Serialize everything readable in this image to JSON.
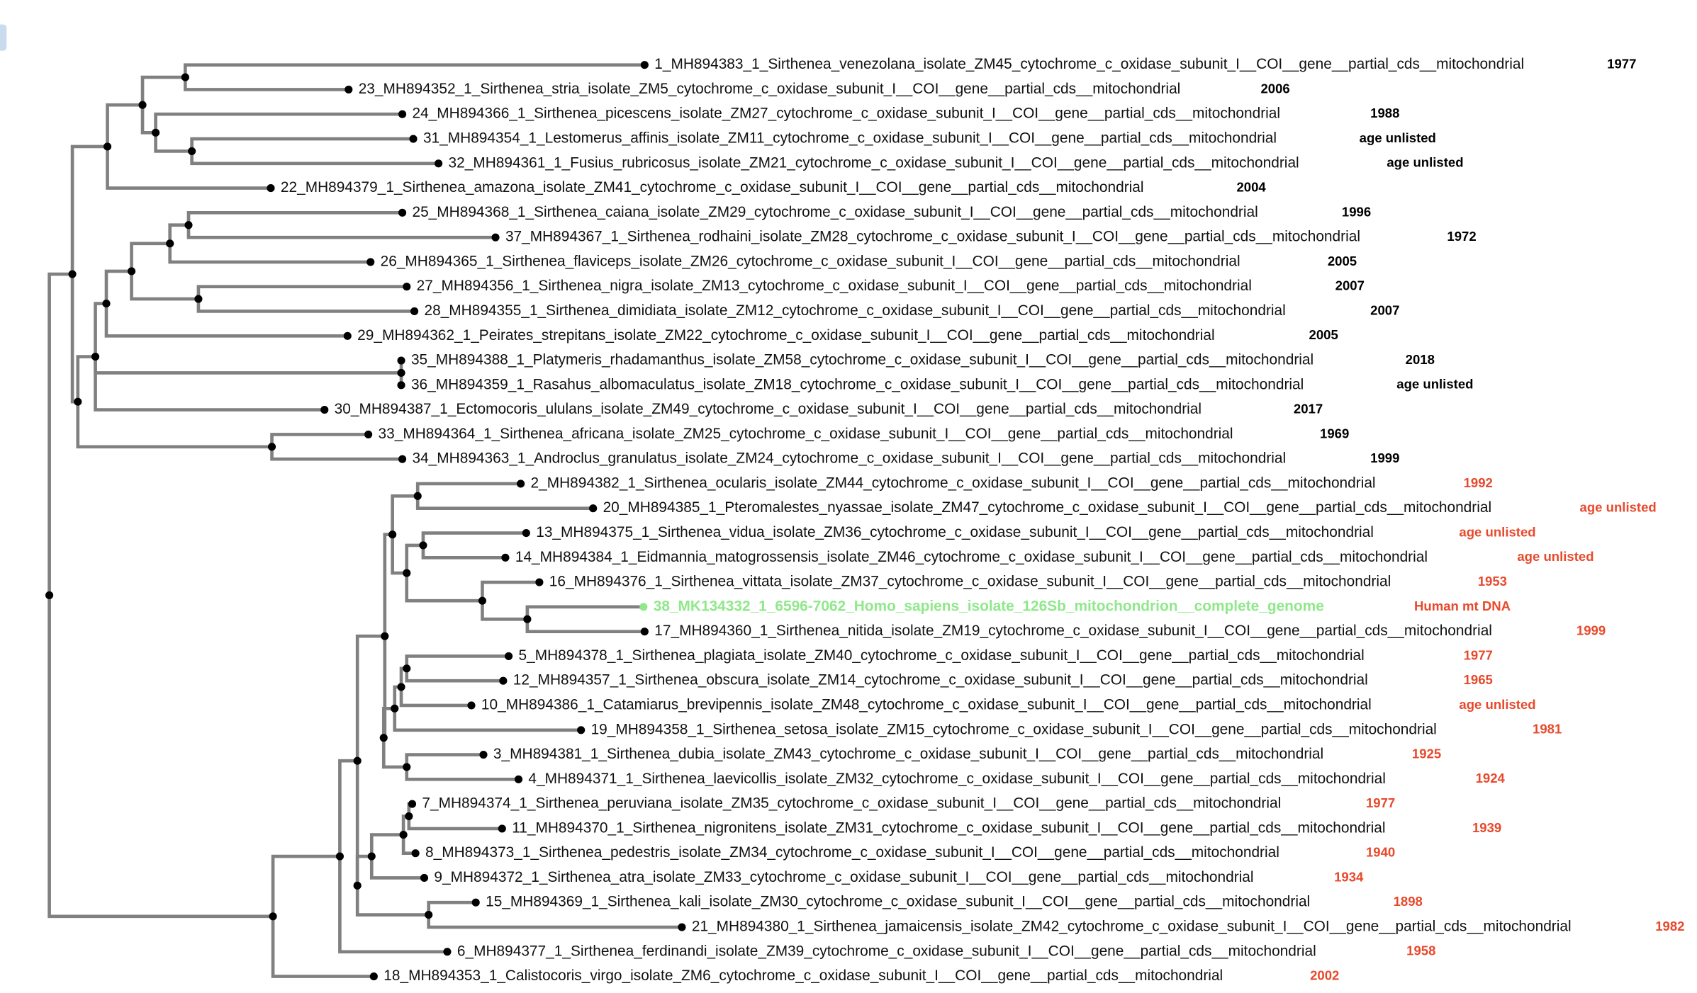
{
  "leaves": [
    {
      "label": "1_MH894383_1_Sirthenea_venezolana_isolate_ZM45_cytochrome_c_oxidase_subunit_I__COI__gene__partial_cds__mitochondrial",
      "note": "1977"
    },
    {
      "label": "23_MH894352_1_Sirthenea_stria_isolate_ZM5_cytochrome_c_oxidase_subunit_I__COI__gene__partial_cds__mitochondrial",
      "note": "2006"
    },
    {
      "label": "24_MH894366_1_Sirthenea_picescens_isolate_ZM27_cytochrome_c_oxidase_subunit_I__COI__gene__partial_cds__mitochondrial",
      "note": "1988"
    },
    {
      "label": "31_MH894354_1_Lestomerus_affinis_isolate_ZM11_cytochrome_c_oxidase_subunit_I__COI__gene__partial_cds__mitochondrial",
      "note": "age unlisted"
    },
    {
      "label": "32_MH894361_1_Fusius_rubricosus_isolate_ZM21_cytochrome_c_oxidase_subunit_I__COI__gene__partial_cds__mitochondrial",
      "note": "age unlisted"
    },
    {
      "label": "22_MH894379_1_Sirthenea_amazona_isolate_ZM41_cytochrome_c_oxidase_subunit_I__COI__gene__partial_cds__mitochondrial",
      "note": "2004"
    },
    {
      "label": "25_MH894368_1_Sirthenea_caiana_isolate_ZM29_cytochrome_c_oxidase_subunit_I__COI__gene__partial_cds__mitochondrial",
      "note": "1996"
    },
    {
      "label": "37_MH894367_1_Sirthenea_rodhaini_isolate_ZM28_cytochrome_c_oxidase_subunit_I__COI__gene__partial_cds__mitochondrial",
      "note": "1972"
    },
    {
      "label": "26_MH894365_1_Sirthenea_flaviceps_isolate_ZM26_cytochrome_c_oxidase_subunit_I__COI__gene__partial_cds__mitochondrial",
      "note": "2005"
    },
    {
      "label": "27_MH894356_1_Sirthenea_nigra_isolate_ZM13_cytochrome_c_oxidase_subunit_I__COI__gene__partial_cds__mitochondrial",
      "note": "2007"
    },
    {
      "label": "28_MH894355_1_Sirthenea_dimidiata_isolate_ZM12_cytochrome_c_oxidase_subunit_I__COI__gene__partial_cds__mitochondrial",
      "note": "2007"
    },
    {
      "label": "29_MH894362_1_Peirates_strepitans_isolate_ZM22_cytochrome_c_oxidase_subunit_I__COI__gene__partial_cds__mitochondrial",
      "note": "2005"
    },
    {
      "label": "35_MH894388_1_Platymeris_rhadamanthus_isolate_ZM58_cytochrome_c_oxidase_subunit_I__COI__gene__partial_cds__mitochondrial",
      "note": "2018"
    },
    {
      "label": "36_MH894359_1_Rasahus_albomaculatus_isolate_ZM18_cytochrome_c_oxidase_subunit_I__COI__gene__partial_cds__mitochondrial",
      "note": "age unlisted"
    },
    {
      "label": "30_MH894387_1_Ectomocoris_ululans_isolate_ZM49_cytochrome_c_oxidase_subunit_I__COI__gene__partial_cds__mitochondrial",
      "note": "2017"
    },
    {
      "label": "33_MH894364_1_Sirthenea_africana_isolate_ZM25_cytochrome_c_oxidase_subunit_I__COI__gene__partial_cds__mitochondrial",
      "note": "1969"
    },
    {
      "label": "34_MH894363_1_Androclus_granulatus_isolate_ZM24_cytochrome_c_oxidase_subunit_I__COI__gene__partial_cds__mitochondrial",
      "note": "1999"
    },
    {
      "label": "2_MH894382_1_Sirthenea_ocularis_isolate_ZM44_cytochrome_c_oxidase_subunit_I__COI__gene__partial_cds__mitochondrial",
      "note": "1992"
    },
    {
      "label": "20_MH894385_1_Pteromalestes_nyassae_isolate_ZM47_cytochrome_c_oxidase_subunit_I__COI__gene__partial_cds__mitochondrial",
      "note": "age unlisted"
    },
    {
      "label": "13_MH894375_1_Sirthenea_vidua_isolate_ZM36_cytochrome_c_oxidase_subunit_I__COI__gene__partial_cds__mitochondrial",
      "note": "age unlisted"
    },
    {
      "label": "14_MH894384_1_Eidmannia_matogrossensis_isolate_ZM46_cytochrome_c_oxidase_subunit_I__COI__gene__partial_cds__mitochondrial",
      "note": "age unlisted"
    },
    {
      "label": "16_MH894376_1_Sirthenea_vittata_isolate_ZM37_cytochrome_c_oxidase_subunit_I__COI__gene__partial_cds__mitochondrial",
      "note": "1953"
    },
    {
      "label": "38_MK134332_1_6596-7062_Homo_sapiens_isolate_126Sb_mitochondrion__complete_genome",
      "note": "Human mt DNA"
    },
    {
      "label": "17_MH894360_1_Sirthenea_nitida_isolate_ZM19_cytochrome_c_oxidase_subunit_I__COI__gene__partial_cds__mitochondrial",
      "note": "1999"
    },
    {
      "label": "5_MH894378_1_Sirthenea_plagiata_isolate_ZM40_cytochrome_c_oxidase_subunit_I__COI__gene__partial_cds__mitochondrial",
      "note": "1977"
    },
    {
      "label": "12_MH894357_1_Sirthenea_obscura_isolate_ZM14_cytochrome_c_oxidase_subunit_I__COI__gene__partial_cds__mitochondrial",
      "note": "1965"
    },
    {
      "label": "10_MH894386_1_Catamiarus_brevipennis_isolate_ZM48_cytochrome_c_oxidase_subunit_I__COI__gene__partial_cds__mitochondrial",
      "note": "age unlisted"
    },
    {
      "label": "19_MH894358_1_Sirthenea_setosa_isolate_ZM15_cytochrome_c_oxidase_subunit_I__COI__gene__partial_cds__mitochondrial",
      "note": "1981"
    },
    {
      "label": "3_MH894381_1_Sirthenea_dubia_isolate_ZM43_cytochrome_c_oxidase_subunit_I__COI__gene__partial_cds__mitochondrial",
      "note": "1925"
    },
    {
      "label": "4_MH894371_1_Sirthenea_laevicollis_isolate_ZM32_cytochrome_c_oxidase_subunit_I__COI__gene__partial_cds__mitochondrial",
      "note": "1924"
    },
    {
      "label": "7_MH894374_1_Sirthenea_peruviana_isolate_ZM35_cytochrome_c_oxidase_subunit_I__COI__gene__partial_cds__mitochondrial",
      "note": "1977"
    },
    {
      "label": "11_MH894370_1_Sirthenea_nigronitens_isolate_ZM31_cytochrome_c_oxidase_subunit_I__COI__gene__partial_cds__mitochondrial",
      "note": "1939"
    },
    {
      "label": "8_MH894373_1_Sirthenea_pedestris_isolate_ZM34_cytochrome_c_oxidase_subunit_I__COI__gene__partial_cds__mitochondrial",
      "note": "1940"
    },
    {
      "label": "9_MH894372_1_Sirthenea_atra_isolate_ZM33_cytochrome_c_oxidase_subunit_I__COI__gene__partial_cds__mitochondrial",
      "note": "1934"
    },
    {
      "label": "15_MH894369_1_Sirthenea_kali_isolate_ZM30_cytochrome_c_oxidase_subunit_I__COI__gene__partial_cds__mitochondrial",
      "note": "1898"
    },
    {
      "label": "21_MH894380_1_Sirthenea_jamaicensis_isolate_ZM42_cytochrome_c_oxidase_subunit_I__COI__gene__partial_cds__mitochondrial",
      "note": "1982"
    },
    {
      "label": "6_MH894377_1_Sirthenea_ferdinandi_isolate_ZM39_cytochrome_c_oxidase_subunit_I__COI__gene__partial_cds__mitochondrial",
      "note": "1958"
    },
    {
      "label": "18_MH894353_1_Calistocoris_virgo_isolate_ZM6_cytochrome_c_oxidase_subunit_I__COI__gene__partial_cds__mitochondrial",
      "note": "2002"
    }
  ]
}
